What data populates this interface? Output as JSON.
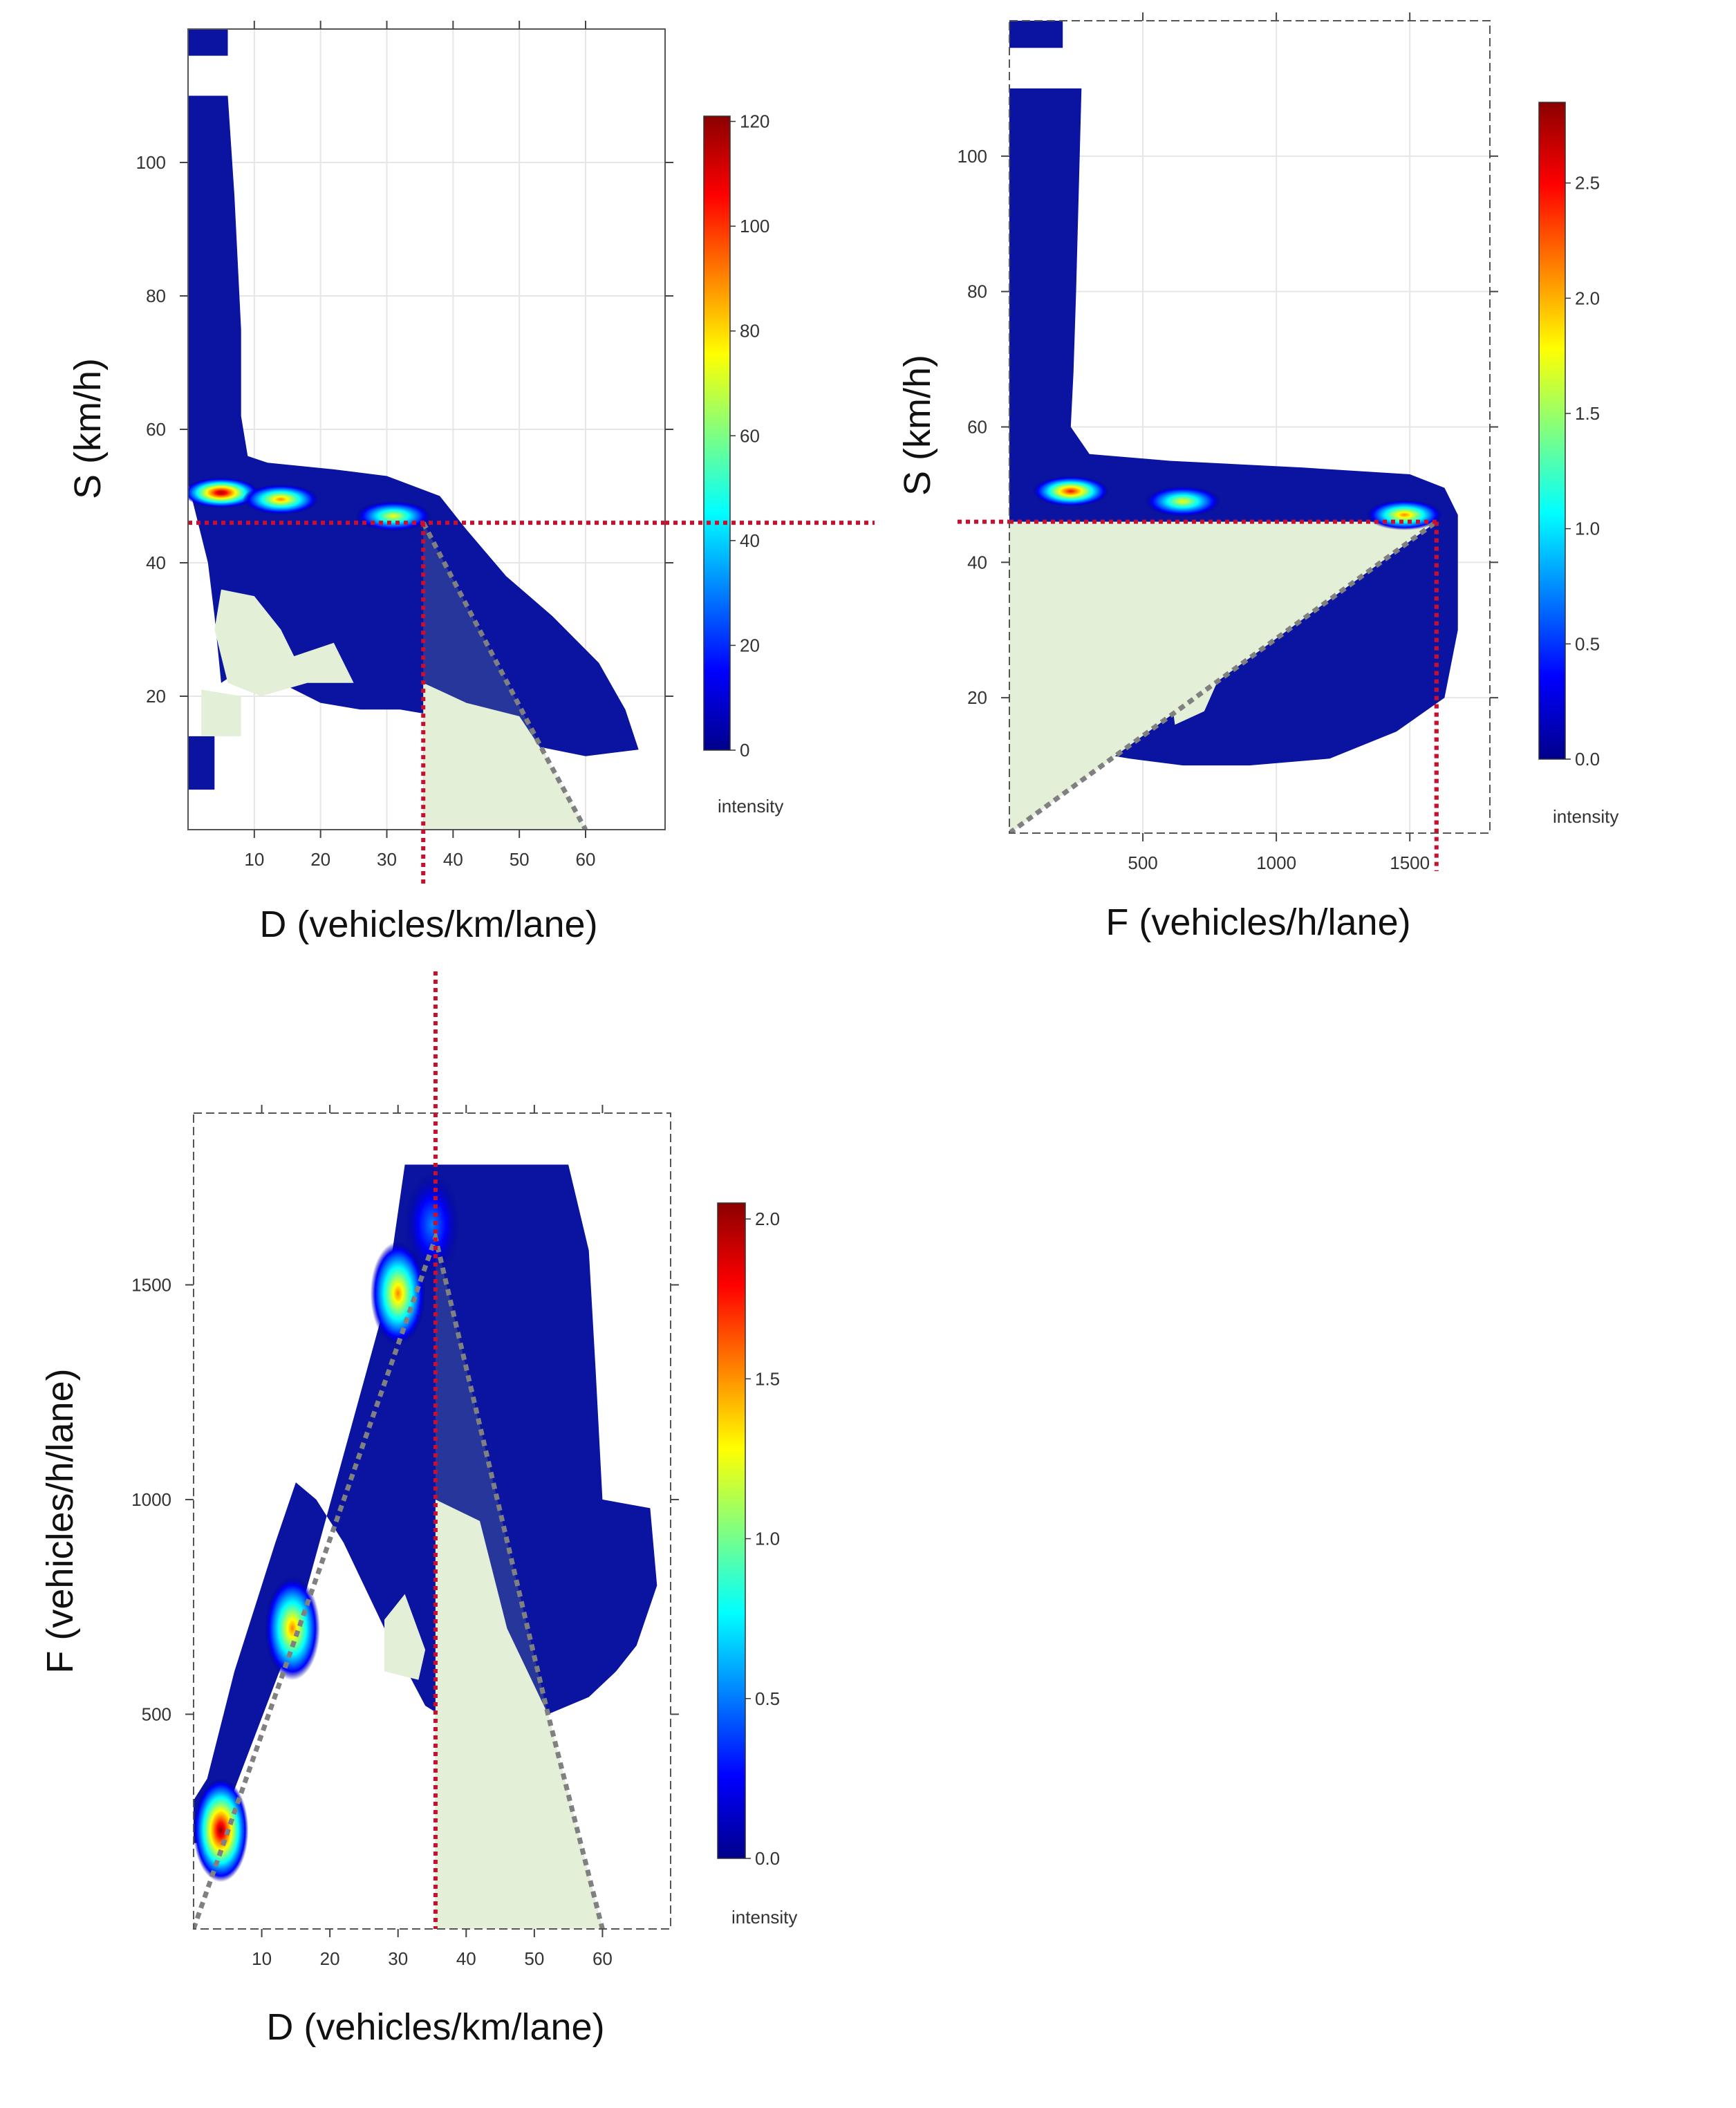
{
  "colors": {
    "density_ramp": [
      "#00008b",
      "#0000ff",
      "#0080ff",
      "#00ffff",
      "#80ff80",
      "#ffff00",
      "#ff8000",
      "#ff0000",
      "#8b0000"
    ],
    "low_density_fill": "#0a14a0",
    "shaded_region": "#2a3a9a",
    "empty_region": "#e3efd6",
    "reference_line": "#c8102e",
    "fundamental_diagram_line": "#808080"
  },
  "chart_data": [
    {
      "id": "speed-density",
      "type": "heatmap",
      "title": "",
      "xlabel": "D (vehicles/km/lane)",
      "ylabel": "S (km/h)",
      "xlim": [
        0,
        72
      ],
      "ylim": [
        0,
        120
      ],
      "x_ticks": [
        10,
        20,
        30,
        40,
        50,
        60
      ],
      "y_ticks": [
        20,
        40,
        60,
        80,
        100
      ],
      "grid": true,
      "colorbar": {
        "title": "intensity",
        "min": 0,
        "max": 121,
        "ticks": [
          0,
          20,
          40,
          60,
          80,
          100,
          120
        ]
      },
      "hotspots": [
        {
          "x": 5,
          "y": 50.5,
          "intensity": 120
        },
        {
          "x": 14,
          "y": 49.5,
          "intensity": 85
        },
        {
          "x": 31,
          "y": 47,
          "intensity": 80
        }
      ],
      "reference_lines": {
        "x": 35.5,
        "y": 46
      },
      "fundamental_diagram": [
        [
          35.5,
          46
        ],
        [
          54,
          11
        ],
        [
          60,
          0
        ]
      ]
    },
    {
      "id": "speed-flow",
      "type": "heatmap",
      "title": "",
      "xlabel": "F (vehicles/h/lane)",
      "ylabel": "S (km/h)",
      "xlim": [
        0,
        1800
      ],
      "ylim": [
        0,
        120
      ],
      "x_ticks": [
        500,
        1000,
        1500
      ],
      "y_ticks": [
        20,
        40,
        60,
        80,
        100
      ],
      "grid": true,
      "colorbar": {
        "title": "intensity",
        "min": 0,
        "max": 2.85,
        "ticks": [
          0.0,
          0.5,
          1.0,
          1.5,
          2.0,
          2.5
        ]
      },
      "hotspots": [
        {
          "x": 230,
          "y": 50.5,
          "intensity": 2.6
        },
        {
          "x": 650,
          "y": 49,
          "intensity": 1.7
        },
        {
          "x": 1480,
          "y": 47,
          "intensity": 2.2
        }
      ],
      "reference_lines": {
        "x": 1600,
        "y": 46
      },
      "fundamental_diagram": [
        [
          0,
          0
        ],
        [
          1600,
          46
        ]
      ]
    },
    {
      "id": "flow-density",
      "type": "heatmap",
      "title": "",
      "xlabel": "D (vehicles/km/lane)",
      "ylabel": "F (vehicles/h/lane)",
      "xlim": [
        0,
        70
      ],
      "ylim": [
        0,
        1900
      ],
      "x_ticks": [
        10,
        20,
        30,
        40,
        50,
        60
      ],
      "y_ticks": [
        500,
        1000,
        1500
      ],
      "grid": false,
      "colorbar": {
        "title": "intensity",
        "min": 0,
        "max": 2.05,
        "ticks": [
          0.0,
          0.5,
          1.0,
          1.5,
          2.0
        ]
      },
      "hotspots": [
        {
          "x": 4,
          "y": 230,
          "intensity": 2.0
        },
        {
          "x": 14.5,
          "y": 700,
          "intensity": 1.6
        },
        {
          "x": 30,
          "y": 1480,
          "intensity": 1.5
        },
        {
          "x": 35,
          "y": 1640,
          "intensity": 0.5
        }
      ],
      "reference_lines": {
        "x": 35.5
      },
      "fundamental_diagram": [
        [
          0,
          0
        ],
        [
          35.5,
          1610
        ],
        [
          52,
          500
        ],
        [
          60,
          0
        ]
      ]
    }
  ]
}
